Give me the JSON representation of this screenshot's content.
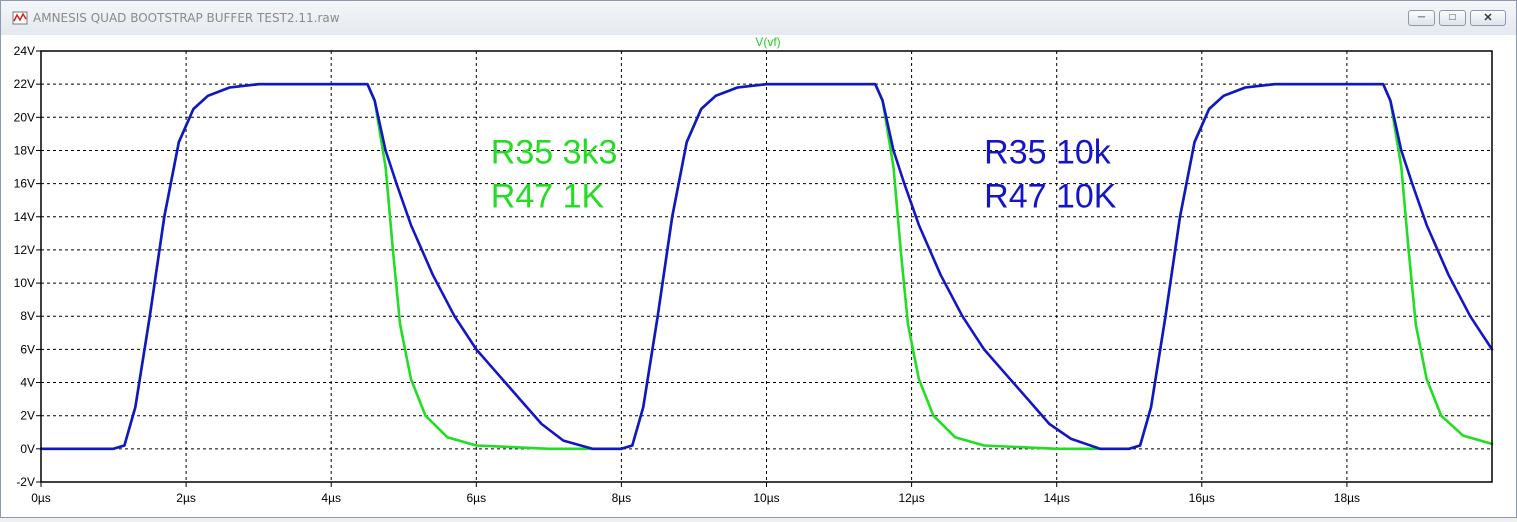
{
  "window": {
    "title": "AMNESIS QUAD BOOTSTRAP BUFFER TEST2.11.raw",
    "buttons": [
      "minimize-button",
      "maximize-button",
      "close-button"
    ]
  },
  "colors": {
    "green": "#22dd22",
    "blue": "#1515c8",
    "grid": "#000000",
    "trace_label": "#22cc22"
  },
  "chart_data": {
    "type": "line",
    "title": "V(vf)",
    "xlabel": "",
    "ylabel": "",
    "xlim": [
      0,
      20
    ],
    "ylim": [
      -2,
      24
    ],
    "x_unit": "µs",
    "y_unit": "V",
    "x_ticks": [
      0,
      2,
      4,
      6,
      8,
      10,
      12,
      14,
      16,
      18
    ],
    "x_tick_labels": [
      "0µs",
      "2µs",
      "4µs",
      "6µs",
      "8µs",
      "10µs",
      "12µs",
      "14µs",
      "16µs",
      "18µs"
    ],
    "y_ticks": [
      -2,
      0,
      2,
      4,
      6,
      8,
      10,
      12,
      14,
      16,
      18,
      20,
      22,
      24
    ],
    "y_tick_labels": [
      "-2V",
      "0V",
      "2V",
      "4V",
      "6V",
      "8V",
      "10V",
      "12V",
      "14V",
      "16V",
      "18V",
      "20V",
      "22V",
      "24V"
    ],
    "grid": true,
    "series": [
      {
        "color": "#22dd22",
        "points": [
          [
            0,
            0
          ],
          [
            1.0,
            0
          ],
          [
            1.15,
            0.2
          ],
          [
            1.3,
            2.5
          ],
          [
            1.5,
            8
          ],
          [
            1.7,
            14
          ],
          [
            1.9,
            18.5
          ],
          [
            2.1,
            20.5
          ],
          [
            2.3,
            21.3
          ],
          [
            2.6,
            21.8
          ],
          [
            3.0,
            22
          ],
          [
            4.5,
            22
          ],
          [
            4.6,
            21
          ],
          [
            4.75,
            17
          ],
          [
            4.85,
            12
          ],
          [
            4.95,
            7.5
          ],
          [
            5.1,
            4.2
          ],
          [
            5.3,
            2.0
          ],
          [
            5.6,
            0.7
          ],
          [
            6.0,
            0.2
          ],
          [
            7.0,
            0
          ],
          [
            8.0,
            0
          ],
          [
            8.15,
            0.2
          ],
          [
            8.3,
            2.5
          ],
          [
            8.5,
            8
          ],
          [
            8.7,
            14
          ],
          [
            8.9,
            18.5
          ],
          [
            9.1,
            20.5
          ],
          [
            9.3,
            21.3
          ],
          [
            9.6,
            21.8
          ],
          [
            10.0,
            22
          ],
          [
            11.5,
            22
          ],
          [
            11.6,
            21
          ],
          [
            11.75,
            17
          ],
          [
            11.85,
            12
          ],
          [
            11.95,
            7.5
          ],
          [
            12.1,
            4.2
          ],
          [
            12.3,
            2.0
          ],
          [
            12.6,
            0.7
          ],
          [
            13.0,
            0.2
          ],
          [
            14.0,
            0
          ],
          [
            15.0,
            0
          ],
          [
            15.15,
            0.2
          ],
          [
            15.3,
            2.5
          ],
          [
            15.5,
            8
          ],
          [
            15.7,
            14
          ],
          [
            15.9,
            18.5
          ],
          [
            16.1,
            20.5
          ],
          [
            16.3,
            21.3
          ],
          [
            16.6,
            21.8
          ],
          [
            17.0,
            22
          ],
          [
            18.5,
            22
          ],
          [
            18.6,
            21
          ],
          [
            18.75,
            17
          ],
          [
            18.85,
            12
          ],
          [
            18.95,
            7.5
          ],
          [
            19.1,
            4.2
          ],
          [
            19.3,
            2.0
          ],
          [
            19.6,
            0.8
          ],
          [
            20.0,
            0.3
          ]
        ]
      },
      {
        "color": "#1515c8",
        "points": [
          [
            0,
            0
          ],
          [
            1.0,
            0
          ],
          [
            1.15,
            0.2
          ],
          [
            1.3,
            2.5
          ],
          [
            1.5,
            8
          ],
          [
            1.7,
            14
          ],
          [
            1.9,
            18.5
          ],
          [
            2.1,
            20.5
          ],
          [
            2.3,
            21.3
          ],
          [
            2.6,
            21.8
          ],
          [
            3.0,
            22
          ],
          [
            4.5,
            22
          ],
          [
            4.6,
            21
          ],
          [
            4.75,
            18
          ],
          [
            4.9,
            16
          ],
          [
            5.1,
            13.5
          ],
          [
            5.4,
            10.5
          ],
          [
            5.7,
            8
          ],
          [
            6.0,
            6
          ],
          [
            6.3,
            4.5
          ],
          [
            6.6,
            3
          ],
          [
            6.9,
            1.5
          ],
          [
            7.2,
            0.5
          ],
          [
            7.6,
            0
          ],
          [
            8.0,
            0
          ],
          [
            8.15,
            0.2
          ],
          [
            8.3,
            2.5
          ],
          [
            8.5,
            8
          ],
          [
            8.7,
            14
          ],
          [
            8.9,
            18.5
          ],
          [
            9.1,
            20.5
          ],
          [
            9.3,
            21.3
          ],
          [
            9.6,
            21.8
          ],
          [
            10.0,
            22
          ],
          [
            11.5,
            22
          ],
          [
            11.6,
            21
          ],
          [
            11.75,
            18
          ],
          [
            11.9,
            16
          ],
          [
            12.1,
            13.5
          ],
          [
            12.4,
            10.5
          ],
          [
            12.7,
            8
          ],
          [
            13.0,
            6
          ],
          [
            13.3,
            4.5
          ],
          [
            13.6,
            3
          ],
          [
            13.9,
            1.5
          ],
          [
            14.2,
            0.6
          ],
          [
            14.6,
            0
          ],
          [
            15.0,
            0
          ],
          [
            15.15,
            0.2
          ],
          [
            15.3,
            2.5
          ],
          [
            15.5,
            8
          ],
          [
            15.7,
            14
          ],
          [
            15.9,
            18.5
          ],
          [
            16.1,
            20.5
          ],
          [
            16.3,
            21.3
          ],
          [
            16.6,
            21.8
          ],
          [
            17.0,
            22
          ],
          [
            18.5,
            22
          ],
          [
            18.6,
            21
          ],
          [
            18.75,
            18
          ],
          [
            18.9,
            16
          ],
          [
            19.1,
            13.5
          ],
          [
            19.4,
            10.5
          ],
          [
            19.7,
            8
          ],
          [
            20.0,
            6
          ]
        ]
      }
    ],
    "annotations": [
      {
        "lines": [
          "R35 3k3",
          "R47 1K"
        ],
        "color": "#22dd22",
        "x": 6.2,
        "y": 17.2
      },
      {
        "lines": [
          "R35 10k",
          "R47 10K"
        ],
        "color": "#1515c8",
        "x": 13.0,
        "y": 17.2
      }
    ]
  }
}
